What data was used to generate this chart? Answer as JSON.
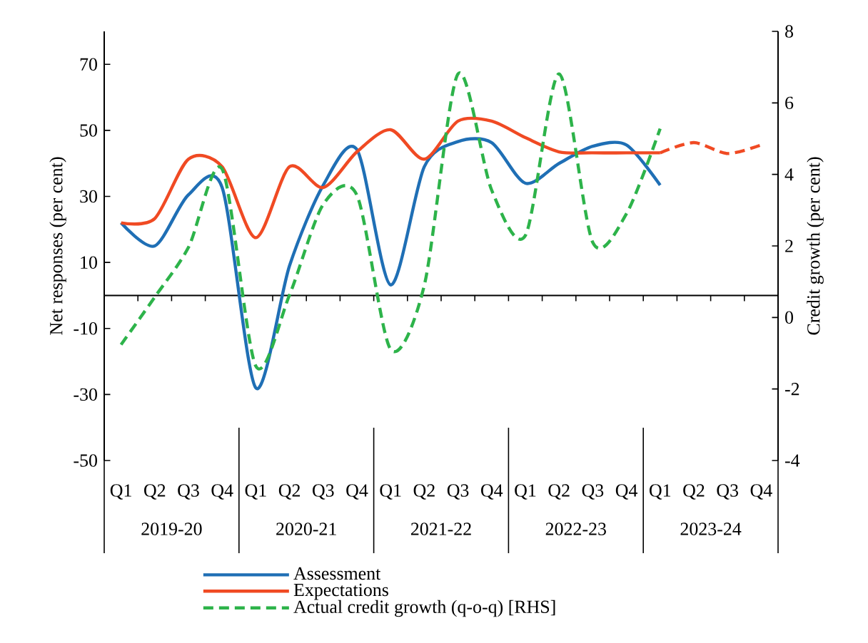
{
  "chart_data": {
    "type": "line",
    "categories": [
      "Q1",
      "Q2",
      "Q3",
      "Q4",
      "Q1",
      "Q2",
      "Q3",
      "Q4",
      "Q1",
      "Q2",
      "Q3",
      "Q4",
      "Q1",
      "Q2",
      "Q3",
      "Q4",
      "Q1",
      "Q2",
      "Q3",
      "Q4"
    ],
    "series": [
      {
        "name": "Assessment",
        "color": "#1f6fb5",
        "line_style": "solid",
        "values": [
          22,
          15,
          30.5,
          32.7,
          -28,
          9,
          33.4,
          44.2,
          3.2,
          39,
          46.6,
          46.3,
          34,
          40,
          45.2,
          45.6,
          33.4,
          null,
          null,
          null
        ]
      },
      {
        "name": "Expectations",
        "color": "#f04a23",
        "line_style": "solid",
        "values": [
          22,
          23.3,
          41.3,
          39,
          17.5,
          39,
          32.7,
          43.5,
          50.2,
          41.3,
          52.8,
          52.8,
          47.8,
          43.5,
          43.2,
          43.2,
          43.2,
          null,
          null,
          null
        ]
      },
      {
        "name": "Actual credit growth (q-o-q) [RHS]",
        "color": "#2db34a",
        "line_style": "dashed",
        "axis": "y2",
        "values": [
          -0.76,
          0.57,
          1.96,
          4.15,
          -1.36,
          0.63,
          3.16,
          3.42,
          -0.89,
          0.9,
          6.81,
          3.56,
          2.29,
          6.81,
          2.1,
          2.9,
          5.28,
          null,
          null,
          null
        ]
      },
      {
        "color": "#f04a23",
        "line_style": "dashed",
        "values": [
          null,
          null,
          null,
          null,
          null,
          null,
          null,
          null,
          null,
          null,
          null,
          null,
          null,
          null,
          null,
          null,
          43.2,
          46.3,
          43,
          45.6
        ]
      }
    ],
    "ylim": [
      -50,
      80
    ],
    "yticks": [
      -50,
      -30,
      -10,
      10,
      30,
      50,
      70
    ],
    "y2lim": [
      -4,
      8
    ],
    "y2ticks": [
      -4,
      -2,
      0,
      2,
      4,
      6,
      8
    ],
    "ylabel": "Net responses (per cent)",
    "y2label": "Credit growth (per cent)",
    "legend": "bottom",
    "annotations": [
      "2019-20",
      "2020-21",
      "2021-22",
      "2022-23",
      "2023-24"
    ]
  }
}
